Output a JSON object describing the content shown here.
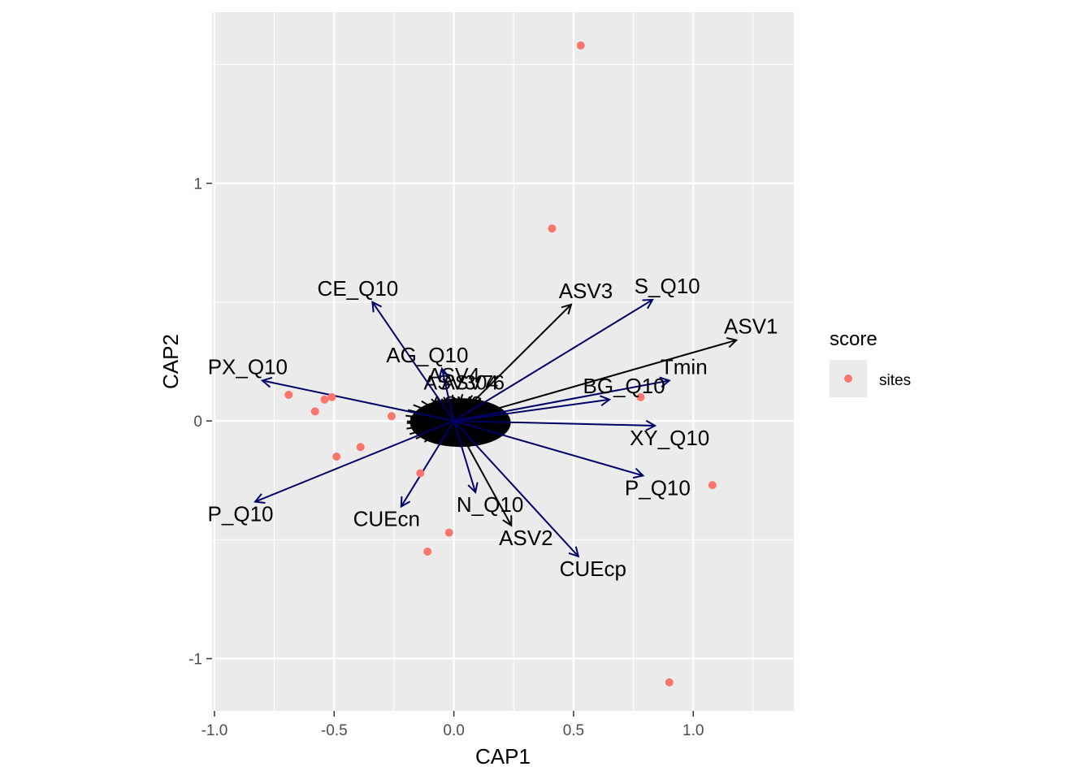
{
  "chart_data": {
    "type": "scatter",
    "xlabel": "CAP1",
    "ylabel": "CAP2",
    "xlim": [
      -1.01,
      1.42
    ],
    "ylim": [
      -1.22,
      1.72
    ],
    "x_ticks": [
      -1.0,
      -0.5,
      0.0,
      0.5,
      1.0
    ],
    "x_tick_labels": [
      "-1.0",
      "-0.5",
      "0.0",
      "0.5",
      "1.0"
    ],
    "y_ticks": [
      -1,
      0,
      1
    ],
    "y_tick_labels": [
      "-1",
      "0",
      "1"
    ],
    "grid": true,
    "legend": {
      "title": "score",
      "placement": "right",
      "entries": [
        {
          "label": "sites",
          "color": "#F8766D"
        }
      ]
    },
    "sites": {
      "name": "sites",
      "color": "#F8766D",
      "points": [
        [
          0.53,
          1.58
        ],
        [
          0.41,
          0.81
        ],
        [
          -0.69,
          0.11
        ],
        [
          -0.51,
          0.1
        ],
        [
          -0.54,
          0.09
        ],
        [
          -0.58,
          0.04
        ],
        [
          -0.26,
          0.02
        ],
        [
          0.78,
          0.1
        ],
        [
          -0.39,
          -0.11
        ],
        [
          -0.49,
          -0.15
        ],
        [
          -0.14,
          -0.22
        ],
        [
          1.08,
          -0.27
        ],
        [
          -0.02,
          -0.47
        ],
        [
          -0.11,
          -0.55
        ],
        [
          0.9,
          -1.1
        ]
      ]
    },
    "named_vectors": [
      {
        "label": "ASV3",
        "x": 0.49,
        "y": 0.49,
        "color": "#000000"
      },
      {
        "label": "ASV1",
        "x": 1.18,
        "y": 0.34,
        "color": "#000000"
      },
      {
        "label": "ASV2",
        "x": 0.24,
        "y": -0.44,
        "color": "#000000"
      },
      {
        "label": "S_Q10",
        "x": 0.83,
        "y": 0.51,
        "color": "#000066"
      },
      {
        "label": "Tmin",
        "x": 0.9,
        "y": 0.17,
        "color": "#000066"
      },
      {
        "label": "BG_Q10",
        "x": 0.65,
        "y": 0.09,
        "color": "#000066"
      },
      {
        "label": "XY_Q10",
        "x": 0.84,
        "y": -0.02,
        "color": "#000066"
      },
      {
        "label": "P_Q10",
        "x": 0.79,
        "y": -0.23,
        "color": "#000066"
      },
      {
        "label": "CUEcp",
        "x": 0.52,
        "y": -0.57,
        "color": "#000066"
      },
      {
        "label": "N_Q10",
        "x": 0.09,
        "y": -0.3,
        "color": "#000066"
      },
      {
        "label": "CUEcn",
        "x": -0.22,
        "y": -0.36,
        "color": "#000066"
      },
      {
        "label": "P_Q10",
        "x": -0.83,
        "y": -0.34,
        "color": "#000066"
      },
      {
        "label": "PX_Q10",
        "x": -0.8,
        "y": 0.17,
        "color": "#000066"
      },
      {
        "label": "CE_Q10",
        "x": -0.34,
        "y": 0.5,
        "color": "#000066"
      },
      {
        "label": "AG_Q10",
        "x": -0.05,
        "y": 0.22,
        "color": "#000066"
      }
    ],
    "crowded_labels": [
      "ASV4",
      "ASV304",
      "ASV76",
      "ASV0"
    ],
    "annotation_note_count": 60
  }
}
